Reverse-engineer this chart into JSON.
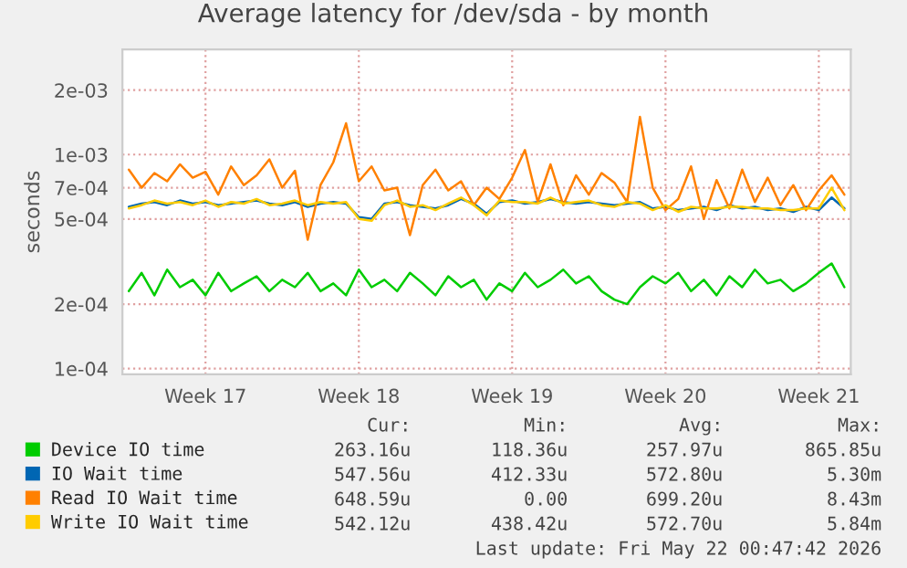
{
  "chart_data": {
    "type": "line",
    "title": "Average latency for /dev/sda - by month",
    "ylabel": "seconds",
    "log": "y",
    "grid": true,
    "legend": "bottom",
    "line_style": "solid",
    "marker": "none",
    "ylim": [
      9.4e-05,
      0.0031
    ],
    "yticks": [
      {
        "value": 0.0001,
        "label": "1e-04"
      },
      {
        "value": 0.0002,
        "label": "2e-04"
      },
      {
        "value": 0.0005,
        "label": "5e-04"
      },
      {
        "value": 0.0007,
        "label": "7e-04"
      },
      {
        "value": 0.001,
        "label": "1e-03"
      },
      {
        "value": 0.002,
        "label": "2e-03"
      }
    ],
    "categories": [
      null,
      null,
      null,
      null,
      null,
      null,
      "Week 17",
      null,
      null,
      null,
      null,
      null,
      null,
      null,
      null,
      null,
      null,
      null,
      "Week 18",
      null,
      null,
      null,
      null,
      null,
      null,
      null,
      null,
      null,
      null,
      null,
      "Week 19",
      null,
      null,
      null,
      null,
      null,
      null,
      null,
      null,
      null,
      null,
      null,
      "Week 20",
      null,
      null,
      null,
      null,
      null,
      null,
      null,
      null,
      null,
      null,
      null,
      "Week 21",
      null,
      null
    ],
    "series": [
      {
        "name": "Device IO time",
        "color": "#00cc00",
        "values": [
          0.00023,
          0.00028,
          0.00022,
          0.00029,
          0.00024,
          0.00026,
          0.00022,
          0.00028,
          0.00023,
          0.00025,
          0.00027,
          0.00023,
          0.00026,
          0.00024,
          0.00028,
          0.00023,
          0.00025,
          0.00022,
          0.00029,
          0.00024,
          0.00026,
          0.00023,
          0.00028,
          0.00025,
          0.00022,
          0.00027,
          0.00024,
          0.00026,
          0.00021,
          0.00025,
          0.00023,
          0.00028,
          0.00024,
          0.00026,
          0.00029,
          0.00025,
          0.00027,
          0.00023,
          0.00021,
          0.0002,
          0.00024,
          0.00027,
          0.00025,
          0.00028,
          0.00023,
          0.00026,
          0.00022,
          0.00027,
          0.00024,
          0.00029,
          0.00025,
          0.00026,
          0.00023,
          0.00025,
          0.00028,
          0.00031,
          0.00024
        ]
      },
      {
        "name": "IO Wait time",
        "color": "#0066b3",
        "values": [
          0.00057,
          0.00059,
          0.0006,
          0.00058,
          0.00061,
          0.00059,
          0.0006,
          0.00058,
          0.00059,
          0.0006,
          0.00061,
          0.00059,
          0.00058,
          0.0006,
          0.00057,
          0.00059,
          0.0006,
          0.00059,
          0.00051,
          0.0005,
          0.00059,
          0.0006,
          0.00058,
          0.00057,
          0.00056,
          0.00058,
          0.00062,
          0.00059,
          0.00053,
          0.0006,
          0.00061,
          0.00059,
          0.0006,
          0.00062,
          0.0006,
          0.00059,
          0.0006,
          0.00059,
          0.00058,
          0.00059,
          0.0006,
          0.00056,
          0.00057,
          0.00055,
          0.00056,
          0.00057,
          0.00055,
          0.00058,
          0.00056,
          0.00057,
          0.00055,
          0.00056,
          0.00054,
          0.00057,
          0.00055,
          0.00063,
          0.00056
        ]
      },
      {
        "name": "Read IO Wait time",
        "color": "#ff8000",
        "values": [
          0.00085,
          0.0007,
          0.00082,
          0.00075,
          0.0009,
          0.00078,
          0.00083,
          0.00065,
          0.00088,
          0.00072,
          0.0008,
          0.00095,
          0.0007,
          0.00084,
          0.0004,
          0.00072,
          0.00092,
          0.0014,
          0.00075,
          0.00088,
          0.00068,
          0.0007,
          0.00042,
          0.00072,
          0.00085,
          0.00068,
          0.00075,
          0.00058,
          0.0007,
          0.00062,
          0.00078,
          0.00105,
          0.0006,
          0.0009,
          0.00058,
          0.0008,
          0.00065,
          0.00082,
          0.00074,
          0.0006,
          0.0015,
          0.0007,
          0.00055,
          0.00062,
          0.00088,
          0.0005,
          0.00076,
          0.00056,
          0.00085,
          0.0006,
          0.00078,
          0.00058,
          0.00072,
          0.00055,
          0.00068,
          0.0008,
          0.00065
        ]
      },
      {
        "name": "Write IO Wait time",
        "color": "#ffcc00",
        "values": [
          0.00056,
          0.00058,
          0.00061,
          0.00059,
          0.0006,
          0.00058,
          0.00061,
          0.00057,
          0.0006,
          0.00059,
          0.00062,
          0.00058,
          0.00059,
          0.00061,
          0.00058,
          0.0006,
          0.00059,
          0.0006,
          0.0005,
          0.00049,
          0.00058,
          0.00061,
          0.00057,
          0.00058,
          0.00055,
          0.00059,
          0.00063,
          0.00058,
          0.00052,
          0.00061,
          0.0006,
          0.0006,
          0.00059,
          0.00063,
          0.00059,
          0.0006,
          0.00061,
          0.00058,
          0.00057,
          0.0006,
          0.00059,
          0.00055,
          0.00058,
          0.00054,
          0.00057,
          0.00056,
          0.00056,
          0.00057,
          0.00057,
          0.00056,
          0.00056,
          0.00055,
          0.00055,
          0.00056,
          0.00056,
          0.0007,
          0.00055
        ]
      }
    ],
    "annotations": [
      "Cur:",
      "Min:",
      "Avg:",
      "Max:",
      "263.16u",
      "118.36u",
      "257.97u",
      "865.85u",
      "547.56u",
      "412.33u",
      "572.80u",
      "5.30m",
      "648.59u",
      "0.00",
      "699.20u",
      "8.43m",
      "542.12u",
      "438.42u",
      "572.70u",
      "5.84m",
      "Last update: Fri May 22 00:47:42 2026"
    ]
  }
}
